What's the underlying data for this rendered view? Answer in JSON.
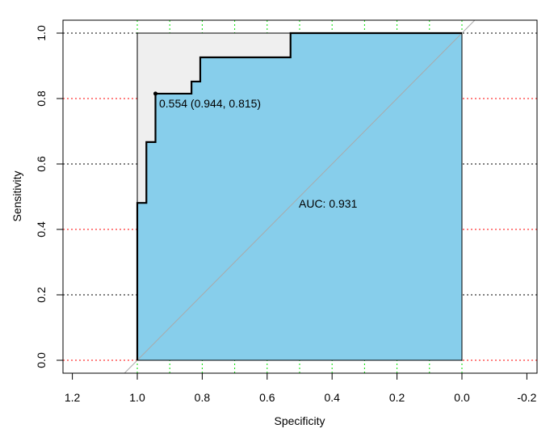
{
  "chart_data": {
    "type": "line",
    "subtype": "roc",
    "xlabel": "Specificity",
    "ylabel": "Sensitivity",
    "xlim": [
      1.2,
      -0.2
    ],
    "ylim": [
      0,
      1
    ],
    "x_reversed": true,
    "x_ticks": [
      "1.2",
      "1.0",
      "0.8",
      "0.6",
      "0.4",
      "0.2",
      "0.0",
      "-0.2"
    ],
    "x_tick_values": [
      1.2,
      1.0,
      0.8,
      0.6,
      0.4,
      0.2,
      0.0,
      -0.2
    ],
    "y_ticks": [
      "0.0",
      "0.2",
      "0.4",
      "0.6",
      "0.8",
      "1.0"
    ],
    "y_tick_values": [
      0,
      0.2,
      0.4,
      0.6,
      0.8,
      1.0
    ],
    "grid": {
      "vertical": [
        1.0,
        0.9,
        0.8,
        0.7,
        0.6,
        0.5,
        0.4,
        0.3,
        0.2,
        0.1,
        0.0
      ],
      "vertical_color": "#00e000",
      "horizontal_black": [
        1.0,
        0.6,
        0.2
      ],
      "horizontal_red": [
        0.8,
        0.4,
        0.0
      ],
      "red_color": "#ff0000"
    },
    "curve": {
      "specificity": [
        1.0,
        1.0,
        0.972,
        0.972,
        0.944,
        0.944,
        0.833,
        0.833,
        0.806,
        0.806,
        0.528,
        0.528,
        0.0
      ],
      "sensitivity": [
        0.0,
        0.481,
        0.481,
        0.667,
        0.667,
        0.815,
        0.815,
        0.852,
        0.852,
        0.926,
        0.926,
        1.0,
        1.0
      ]
    },
    "auc_fill_color": "#87ceeb",
    "max_auc_fill_color": "#efefef",
    "diagonal_color": "#aaaaaa",
    "best_threshold": {
      "threshold": 0.554,
      "specificity": 0.944,
      "sensitivity": 0.815,
      "label": "0.554 (0.944, 0.815)"
    },
    "auc_label": "AUC: 0.931",
    "auc": 0.931
  }
}
